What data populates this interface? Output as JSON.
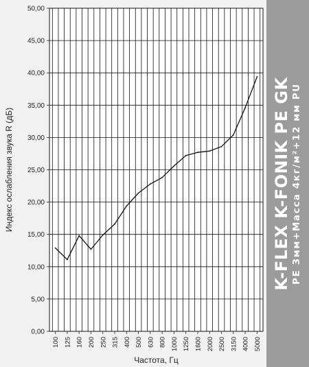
{
  "chart_data": {
    "type": "line",
    "title": "",
    "xlabel": "Частота, Гц",
    "ylabel": "Индекс ослабления звука R (дБ)",
    "categories": [
      "100",
      "125",
      "160",
      "200",
      "250",
      "315",
      "400",
      "500",
      "630",
      "800",
      "1000",
      "1250",
      "1600",
      "2000",
      "2500",
      "3150",
      "4000",
      "5000"
    ],
    "series": [
      {
        "values": [
          12.9,
          11.1,
          14.8,
          12.7,
          14.9,
          16.6,
          19.4,
          21.4,
          22.8,
          23.8,
          25.6,
          27.2,
          27.7,
          27.9,
          28.6,
          30.4,
          34.6,
          39.4
        ]
      }
    ],
    "ylim": [
      0,
      50
    ],
    "yticks": [
      "0,00",
      "5,00",
      "10,00",
      "15,00",
      "20,00",
      "25,00",
      "30,00",
      "35,00",
      "40,00",
      "45,00",
      "50,00"
    ],
    "grid": true,
    "line_color": "#111111",
    "grid_color": "#111111",
    "background": "#ffffff"
  },
  "brand": {
    "title": "K-FLEX K-FONIK PE GK",
    "subtitle": "PE 3мм+Масса 4кг/м²+12 мм PU",
    "panel_color": "#9b9b9b",
    "text_color": "#ffffff"
  }
}
